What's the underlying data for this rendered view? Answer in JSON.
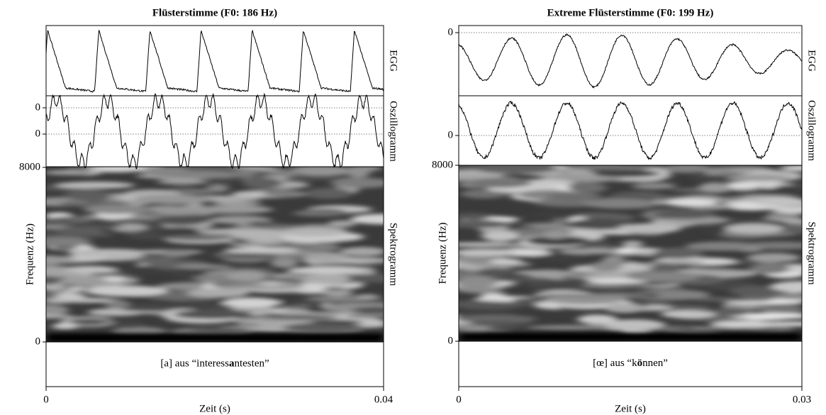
{
  "panels": [
    {
      "title": "Flüsterstimme (F0: 186 Hz)",
      "track_labels": [
        "EGG",
        "Oszillogramm",
        "Spektrogramm"
      ],
      "y_label": "Frequenz (Hz)",
      "x_label": "Zeit (s)",
      "x_ticks": [
        "0",
        "0.04"
      ],
      "egg_ticks": [],
      "osc_ticks": [
        "0",
        "0"
      ],
      "freq_ticks": [
        "8000",
        "0"
      ],
      "caption": {
        "before": "[a] aus “interess",
        "bold": "a",
        "after": "ntesten”"
      }
    },
    {
      "title": "Extreme Flüsterstimme (F0: 199 Hz)",
      "track_labels": [
        "EGG",
        "Oszillogramm",
        "Spektrogramm"
      ],
      "y_label": "Frequenz (Hz)",
      "x_label": "Zeit (s)",
      "x_ticks": [
        "0",
        "0.03"
      ],
      "egg_ticks": [
        "0"
      ],
      "osc_ticks": [
        "0"
      ],
      "freq_ticks": [
        "8000",
        "0"
      ],
      "caption": {
        "before": "[œ] aus “k",
        "bold": "ö",
        "after": "nnen”"
      }
    }
  ]
}
